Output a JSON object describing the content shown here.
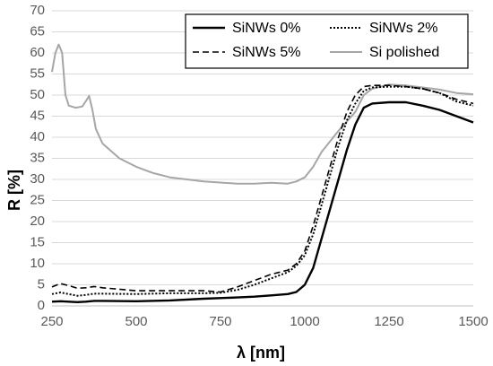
{
  "chart_data": {
    "type": "line",
    "xlabel": "λ [nm]",
    "ylabel": "R [%]",
    "xlim": [
      250,
      1500
    ],
    "ylim": [
      0,
      70
    ],
    "xticks": [
      250,
      500,
      750,
      1000,
      1250,
      1500
    ],
    "yticks": [
      0,
      5,
      10,
      15,
      20,
      25,
      30,
      35,
      40,
      45,
      50,
      55,
      60,
      65,
      70
    ],
    "grid": "horizontal",
    "legend_position": "top-right",
    "series": [
      {
        "name": "SiNWs 0%",
        "color": "#000000",
        "style": "solid",
        "x": [
          250,
          275,
          300,
          325,
          350,
          375,
          400,
          500,
          600,
          700,
          800,
          850,
          900,
          950,
          975,
          1000,
          1025,
          1050,
          1075,
          1100,
          1125,
          1150,
          1175,
          1200,
          1250,
          1300,
          1350,
          1400,
          1450,
          1500
        ],
        "y": [
          1.0,
          1.1,
          1.0,
          0.9,
          1.0,
          1.2,
          1.2,
          1.1,
          1.3,
          1.7,
          2.0,
          2.2,
          2.5,
          2.8,
          3.3,
          5.0,
          9.0,
          16.0,
          23.0,
          30.0,
          37.0,
          43.0,
          47.0,
          48.0,
          48.3,
          48.3,
          47.5,
          46.5,
          45.0,
          43.5
        ]
      },
      {
        "name": "SiNWs 2%",
        "color": "#000000",
        "style": "dotted",
        "x": [
          250,
          275,
          300,
          325,
          350,
          375,
          400,
          500,
          600,
          700,
          750,
          800,
          850,
          900,
          950,
          975,
          1000,
          1025,
          1050,
          1075,
          1100,
          1125,
          1150,
          1175,
          1200,
          1250,
          1300,
          1350,
          1400,
          1450,
          1500
        ],
        "y": [
          2.8,
          3.2,
          2.8,
          2.4,
          2.6,
          2.9,
          2.9,
          2.8,
          3.0,
          3.0,
          3.1,
          3.8,
          5.0,
          6.5,
          8.0,
          9.5,
          12.0,
          17.0,
          24.0,
          31.0,
          38.0,
          44.0,
          48.0,
          51.0,
          51.8,
          52.0,
          52.0,
          51.5,
          50.5,
          48.5,
          47.5
        ]
      },
      {
        "name": "SiNWs 5%",
        "color": "#000000",
        "style": "dashed",
        "x": [
          250,
          275,
          300,
          325,
          350,
          375,
          400,
          500,
          600,
          700,
          750,
          800,
          850,
          900,
          950,
          975,
          1000,
          1025,
          1050,
          1075,
          1100,
          1125,
          1150,
          1175,
          1200,
          1250,
          1300,
          1350,
          1400,
          1450,
          1500
        ],
        "y": [
          4.5,
          5.3,
          4.8,
          4.2,
          4.3,
          4.6,
          4.3,
          3.6,
          3.6,
          3.6,
          3.3,
          4.5,
          6.0,
          7.5,
          8.5,
          10.0,
          13.0,
          19.0,
          26.0,
          33.0,
          40.0,
          46.0,
          50.0,
          52.0,
          52.3,
          52.3,
          52.0,
          51.5,
          50.5,
          49.0,
          48.0
        ]
      },
      {
        "name": "Si polished",
        "color": "#a6a6a6",
        "style": "solid",
        "x": [
          250,
          260,
          270,
          280,
          290,
          300,
          320,
          340,
          350,
          360,
          370,
          380,
          400,
          450,
          500,
          550,
          600,
          700,
          800,
          850,
          900,
          950,
          975,
          1000,
          1025,
          1050,
          1100,
          1150,
          1175,
          1200,
          1250,
          1300,
          1350,
          1400,
          1450,
          1500
        ],
        "y": [
          55.5,
          60.0,
          62.0,
          60.0,
          50.0,
          47.5,
          47.0,
          47.3,
          48.5,
          49.8,
          46.5,
          42.0,
          38.5,
          35.0,
          33.0,
          31.5,
          30.5,
          29.5,
          29.0,
          29.0,
          29.2,
          29.0,
          29.5,
          30.5,
          33.0,
          36.5,
          41.5,
          46.0,
          50.0,
          51.5,
          52.5,
          52.3,
          51.8,
          51.3,
          50.5,
          50.2
        ]
      }
    ]
  }
}
